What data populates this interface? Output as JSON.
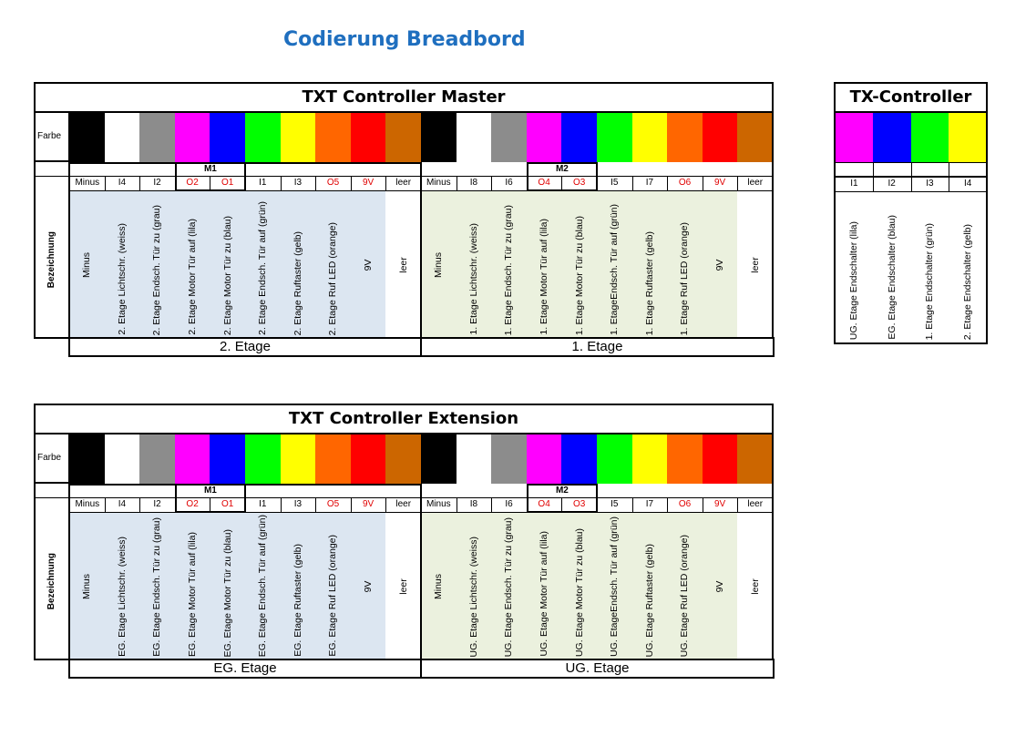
{
  "title": "Codierung Breadbord",
  "labels": {
    "farbe": "Farbe",
    "bezeichnung": "Bezeichnung"
  },
  "colors": [
    "#000000",
    "#ffffff",
    "#8c8c8c",
    "#ff00ff",
    "#0000ff",
    "#00ff00",
    "#ffff00",
    "#ff6600",
    "#ff0000",
    "#cc6600",
    "#000000",
    "#ffffff",
    "#8c8c8c",
    "#ff00ff",
    "#0000ff",
    "#00ff00",
    "#ffff00",
    "#ff6600",
    "#ff0000",
    "#cc6600"
  ],
  "tx_colors": [
    "#ff00ff",
    "#0000ff",
    "#00ff00",
    "#ffff00"
  ],
  "master": {
    "title": "TXT Controller Master",
    "m1": "M1",
    "m2": "M2",
    "codes": [
      "Minus",
      "I4",
      "I2",
      "O2",
      "O1",
      "I1",
      "I3",
      "O5",
      "9V",
      "leer",
      "Minus",
      "I8",
      "I6",
      "O4",
      "O3",
      "I5",
      "I7",
      "O6",
      "9V",
      "leer"
    ],
    "desc": [
      "Minus",
      "2. Etage Lichtschr. (weiss)",
      "2. Etage Endsch. Tür zu   (grau)",
      "2. Etage Motor Tür auf (lila)",
      "2. Etage Motor Tür zu (blau)",
      "2. Etage Endsch. Tür auf (grün)",
      "2. Etage Ruftaster (gelb)",
      "2. Etage Ruf LED (orange)",
      "9V",
      "leer",
      "Minus",
      "1. Etage Lichtschr. (weiss)",
      "1. Etage Endsch. Tür zu   (grau)",
      "1. Etage Motor Tür auf (lila)",
      "1. Etage Motor Tür zu (blau)",
      "1. EtageEndsch. Tür auf (grün)",
      "1. Etage Ruftaster (gelb)",
      "1. Etage Ruf LED (orange)",
      "9V",
      "leer"
    ],
    "etage_left": "2. Etage",
    "etage_right": "1. Etage"
  },
  "extension": {
    "title": "TXT Controller Extension",
    "m1": "M1",
    "m2": "M2",
    "codes": [
      "Minus",
      "I4",
      "I2",
      "O2",
      "O1",
      "I1",
      "I3",
      "O5",
      "9V",
      "leer",
      "Minus",
      "I8",
      "I6",
      "O4",
      "O3",
      "I5",
      "I7",
      "O6",
      "9V",
      "leer"
    ],
    "desc": [
      "Minus",
      "EG. Etage Lichtschr. (weiss)",
      "EG. Etage Endsch. Tür zu (grau)",
      "EG. Etage Motor Tür auf (lila)",
      "EG. Etage Motor Tür zu (blau)",
      "EG. Etage Endsch. Tür auf (grün)",
      "EG. Etage Ruftaster (gelb)",
      "EG. Etage Ruf LED (orange)",
      "9V",
      "leer",
      "Minus",
      "UG. Etage Lichtschr. (weiss)",
      "UG. Etage Endsch. Tür zu (grau)",
      "UG. Etage Motor Tür auf (lila)",
      "UG. Etage Motor Tür zu (blau)",
      "UG. EtageEndsch. Tür auf (grün)",
      "UG. Etage Ruftaster (gelb)",
      "UG. Etage Ruf LED (orange)",
      "9V",
      "leer"
    ],
    "etage_left": "EG. Etage",
    "etage_right": "UG. Etage"
  },
  "tx": {
    "title": "TX-Controller",
    "codes": [
      "I1",
      "I2",
      "I3",
      "I4"
    ],
    "desc": [
      "UG. Etage Endschalter (lila)",
      "EG. Etage Endschalter (blau)",
      "1. Etage Endschalter (grün)",
      "2. Etage Endschalter (gelb)"
    ]
  }
}
